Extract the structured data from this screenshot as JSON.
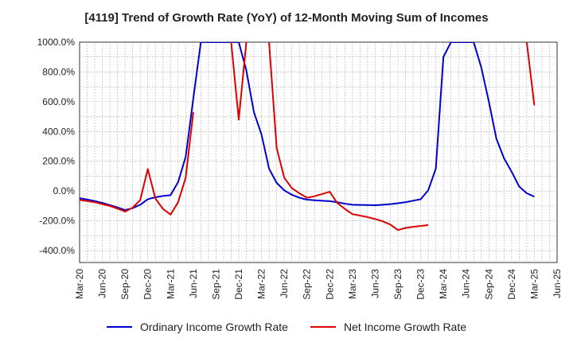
{
  "chart_data": {
    "type": "line",
    "title": "[4119]  Trend of Growth Rate (YoY) of 12-Month Moving Sum of Incomes",
    "xlabel": "",
    "ylabel": "",
    "ylim": [
      -480,
      1000
    ],
    "y_ticks": [
      -400,
      -200,
      0,
      200,
      400,
      600,
      800,
      1000
    ],
    "y_tick_labels": [
      "-400.0%",
      "-200.0%",
      "0.0%",
      "200.0%",
      "400.0%",
      "600.0%",
      "800.0%",
      "1000.0%"
    ],
    "x_tick_labels": [
      "Mar-20",
      "Jun-20",
      "Sep-20",
      "Dec-20",
      "Mar-21",
      "Jun-21",
      "Sep-21",
      "Dec-21",
      "Mar-22",
      "Jun-22",
      "Sep-22",
      "Dec-22",
      "Mar-23",
      "Jun-23",
      "Sep-23",
      "Dec-23",
      "Mar-24",
      "Jun-24",
      "Sep-24",
      "Dec-24",
      "Mar-25",
      "Jun-25"
    ],
    "grid": true,
    "legend_position": "bottom",
    "series": [
      {
        "name": "Ordinary Income Growth Rate",
        "color": "#0000cc",
        "points": [
          [
            "2020-03",
            -48
          ],
          [
            "2020-04",
            -57
          ],
          [
            "2020-05",
            -67
          ],
          [
            "2020-06",
            -80
          ],
          [
            "2020-07",
            -95
          ],
          [
            "2020-08",
            -110
          ],
          [
            "2020-09",
            -128
          ],
          [
            "2020-10",
            -115
          ],
          [
            "2020-11",
            -92
          ],
          [
            "2020-12",
            -55
          ],
          [
            "2021-01",
            -42
          ],
          [
            "2021-02",
            -33
          ],
          [
            "2021-03",
            -28
          ],
          [
            "2021-04",
            60
          ],
          [
            "2021-05",
            230
          ],
          [
            "2021-06",
            620
          ],
          [
            "2021-07",
            1000
          ],
          [
            "2021-12",
            1000
          ],
          [
            "2022-01",
            810
          ],
          [
            "2022-02",
            530
          ],
          [
            "2022-03",
            380
          ],
          [
            "2022-04",
            150
          ],
          [
            "2022-05",
            55
          ],
          [
            "2022-06",
            5
          ],
          [
            "2022-07",
            -25
          ],
          [
            "2022-08",
            -45
          ],
          [
            "2022-09",
            -58
          ],
          [
            "2022-10",
            -62
          ],
          [
            "2022-11",
            -65
          ],
          [
            "2022-12",
            -68
          ],
          [
            "2023-01",
            -75
          ],
          [
            "2023-02",
            -85
          ],
          [
            "2023-03",
            -92
          ],
          [
            "2023-04",
            -93
          ],
          [
            "2023-05",
            -94
          ],
          [
            "2023-06",
            -95
          ],
          [
            "2023-07",
            -92
          ],
          [
            "2023-08",
            -88
          ],
          [
            "2023-09",
            -82
          ],
          [
            "2023-10",
            -75
          ],
          [
            "2023-11",
            -65
          ],
          [
            "2023-12",
            -55
          ],
          [
            "2024-01",
            5
          ],
          [
            "2024-02",
            150
          ],
          [
            "2024-03",
            900
          ],
          [
            "2024-04",
            1000
          ],
          [
            "2024-07",
            1000
          ],
          [
            "2024-08",
            830
          ],
          [
            "2024-09",
            600
          ],
          [
            "2024-10",
            350
          ],
          [
            "2024-11",
            220
          ],
          [
            "2024-12",
            130
          ],
          [
            "2025-01",
            30
          ],
          [
            "2025-02",
            -15
          ],
          [
            "2025-03",
            -38
          ]
        ]
      },
      {
        "name": "Net Income Growth Rate",
        "color": "#dd0000",
        "segments": [
          [
            [
              "2020-03",
              -60
            ],
            [
              "2020-04",
              -67
            ],
            [
              "2020-05",
              -75
            ],
            [
              "2020-06",
              -88
            ],
            [
              "2020-07",
              -100
            ],
            [
              "2020-08",
              -118
            ],
            [
              "2020-09",
              -138
            ],
            [
              "2020-10",
              -112
            ],
            [
              "2020-11",
              -60
            ],
            [
              "2020-12",
              148
            ],
            [
              "2021-01",
              -50
            ],
            [
              "2021-02",
              -120
            ],
            [
              "2021-03",
              -158
            ],
            [
              "2021-04",
              -75
            ],
            [
              "2021-05",
              90
            ],
            [
              "2021-06",
              530
            ]
          ],
          [
            [
              "2021-11",
              1000
            ],
            [
              "2021-12",
              480
            ],
            [
              "2022-01",
              1000
            ]
          ],
          [
            [
              "2022-04",
              1000
            ],
            [
              "2022-05",
              290
            ],
            [
              "2022-06",
              90
            ],
            [
              "2022-07",
              20
            ],
            [
              "2022-08",
              -15
            ],
            [
              "2022-09",
              -45
            ],
            [
              "2022-10",
              -35
            ],
            [
              "2022-11",
              -20
            ],
            [
              "2022-12",
              -5
            ],
            [
              "2023-01",
              -80
            ],
            [
              "2023-02",
              -120
            ],
            [
              "2023-03",
              -155
            ],
            [
              "2023-04",
              -165
            ],
            [
              "2023-05",
              -175
            ],
            [
              "2023-06",
              -188
            ],
            [
              "2023-07",
              -203
            ],
            [
              "2023-08",
              -225
            ],
            [
              "2023-09",
              -262
            ],
            [
              "2023-10",
              -248
            ],
            [
              "2023-11",
              -240
            ],
            [
              "2023-12",
              -235
            ],
            [
              "2024-01",
              -228
            ]
          ],
          [
            [
              "2025-02",
              1000
            ],
            [
              "2025-03",
              575
            ]
          ]
        ]
      }
    ]
  }
}
